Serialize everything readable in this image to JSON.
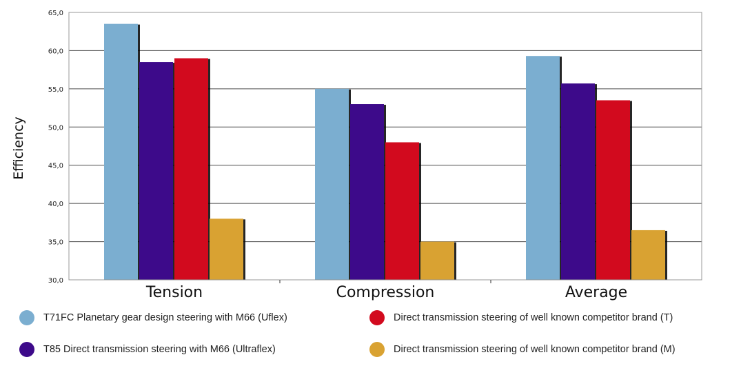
{
  "chart_data": {
    "type": "bar",
    "ylabel": "Efficiency",
    "xlabel": "",
    "ylim": [
      30,
      65
    ],
    "yticks": [
      30,
      35,
      40,
      45,
      50,
      55,
      60,
      65
    ],
    "ytick_labels": [
      "30,0",
      "35,0",
      "40,0",
      "45,0",
      "50,0",
      "55,0",
      "60,0",
      "65,0"
    ],
    "grid": true,
    "legend_position": "bottom",
    "categories": [
      "Tension",
      "Compression",
      "Average"
    ],
    "series": [
      {
        "name": "T71FC  Planetary gear design steering with M66 (Uflex)",
        "color": "#7BAED0",
        "values": [
          63.5,
          55.0,
          59.3
        ]
      },
      {
        "name": "T85 Direct transmission steering with M66 (Ultraflex)",
        "color": "#3D0A8A",
        "values": [
          58.5,
          53.0,
          55.7
        ]
      },
      {
        "name": "Direct transmission steering of well known competitor brand (T)",
        "color": "#D20A1E",
        "values": [
          59.0,
          48.0,
          53.5
        ]
      },
      {
        "name": "Direct transmission steering of well known competitor brand (M)",
        "color": "#D9A232",
        "values": [
          38.0,
          35.0,
          36.5
        ]
      }
    ]
  }
}
